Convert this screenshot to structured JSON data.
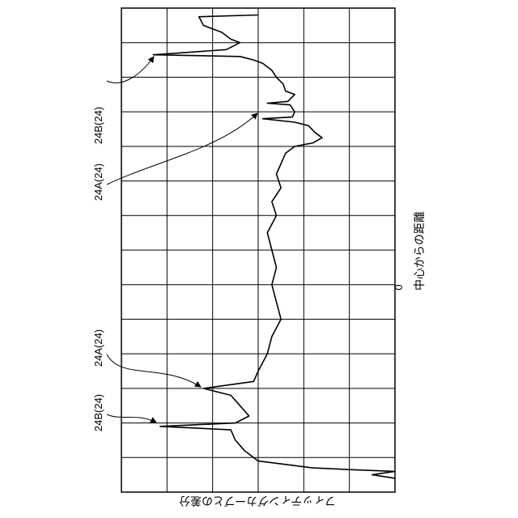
{
  "chart_data": {
    "type": "line",
    "orientation": "rotated-90-ccw",
    "title": "",
    "xlabel": "中心からの距離",
    "ylabel": "フィッティングカーブとの差分",
    "x_tick_label": "0",
    "grid": true,
    "grid_rows": 14,
    "grid_cols": 6,
    "legend": "none",
    "line_color": "#000000",
    "series": [
      {
        "values_row_col": [
          [
            0.2,
            3.0
          ],
          [
            0.25,
            1.7
          ],
          [
            0.5,
            1.8
          ],
          [
            0.7,
            2.2
          ],
          [
            0.9,
            2.4
          ],
          [
            1.0,
            2.6
          ],
          [
            1.2,
            2.3
          ],
          [
            1.35,
            0.7
          ],
          [
            1.4,
            2.6
          ],
          [
            1.5,
            2.9
          ],
          [
            1.6,
            3.1
          ],
          [
            1.8,
            3.3
          ],
          [
            2.0,
            3.4
          ],
          [
            2.2,
            3.55
          ],
          [
            2.4,
            3.6
          ],
          [
            2.5,
            3.8
          ],
          [
            2.7,
            3.65
          ],
          [
            2.75,
            3.2
          ],
          [
            2.8,
            3.7
          ],
          [
            3.0,
            3.8
          ],
          [
            3.15,
            3.75
          ],
          [
            3.2,
            3.1
          ],
          [
            3.3,
            3.8
          ],
          [
            3.4,
            4.1
          ],
          [
            3.6,
            4.25
          ],
          [
            3.75,
            4.4
          ],
          [
            3.9,
            4.2
          ],
          [
            4.0,
            3.8
          ],
          [
            4.2,
            3.6
          ],
          [
            4.5,
            3.5
          ],
          [
            4.8,
            3.4
          ],
          [
            5.2,
            3.5
          ],
          [
            5.6,
            3.3
          ],
          [
            6.0,
            3.4
          ],
          [
            6.5,
            3.2
          ],
          [
            7.0,
            3.3
          ],
          [
            7.5,
            3.4
          ],
          [
            8.0,
            3.3
          ],
          [
            8.5,
            3.4
          ],
          [
            9.0,
            3.5
          ],
          [
            9.5,
            3.3
          ],
          [
            10.0,
            3.2
          ],
          [
            10.5,
            3.0
          ],
          [
            10.8,
            2.9
          ],
          [
            11.0,
            1.8
          ],
          [
            11.2,
            2.4
          ],
          [
            11.5,
            2.6
          ],
          [
            11.8,
            2.8
          ],
          [
            12.0,
            2.5
          ],
          [
            12.1,
            0.85
          ],
          [
            12.2,
            2.4
          ],
          [
            12.5,
            2.5
          ],
          [
            12.8,
            2.7
          ],
          [
            13.1,
            3.0
          ],
          [
            13.2,
            3.6
          ],
          [
            13.3,
            4.2
          ],
          [
            13.35,
            5.0
          ],
          [
            13.4,
            6.0
          ],
          [
            13.5,
            5.5
          ],
          [
            13.6,
            6.0
          ]
        ]
      }
    ],
    "annotations": [
      {
        "text": "24B(24)"
      },
      {
        "text": "24A(24)"
      },
      {
        "text": "24A(24)"
      },
      {
        "text": "24B(24)"
      }
    ]
  }
}
